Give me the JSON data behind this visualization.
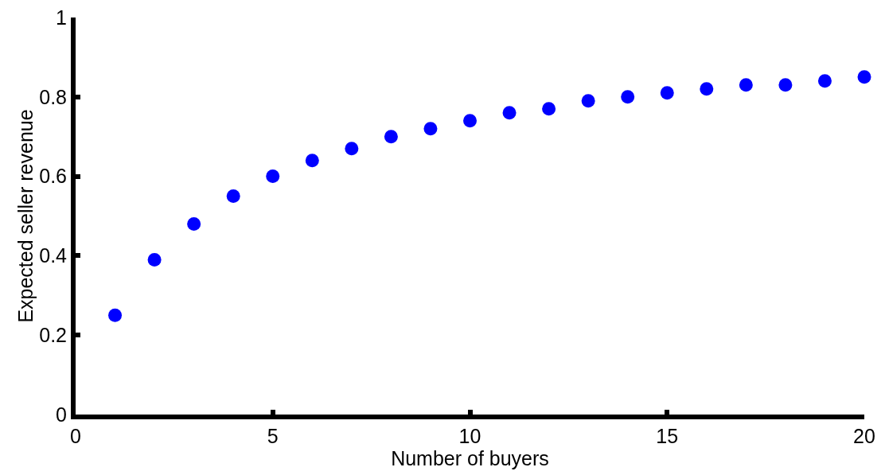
{
  "chart_data": {
    "type": "scatter",
    "xlabel": "Number of buyers",
    "ylabel": "Expected seller revenue",
    "x": [
      1,
      2,
      3,
      4,
      5,
      6,
      7,
      8,
      9,
      10,
      11,
      12,
      13,
      14,
      15,
      16,
      17,
      18,
      19,
      20
    ],
    "series": [
      {
        "color": "#0000ff",
        "values": [
          0.25,
          0.39,
          0.48,
          0.55,
          0.6,
          0.64,
          0.67,
          0.7,
          0.72,
          0.74,
          0.76,
          0.77,
          0.79,
          0.8,
          0.81,
          0.82,
          0.83,
          0.83,
          0.84,
          0.85
        ]
      }
    ],
    "xlim": [
      0,
      20
    ],
    "xticks": [
      0,
      5,
      10,
      15,
      20
    ],
    "ylim": [
      0,
      1
    ],
    "yticks": [
      0,
      0.2,
      0.4,
      0.6,
      0.8,
      1
    ],
    "marker": "circle"
  }
}
